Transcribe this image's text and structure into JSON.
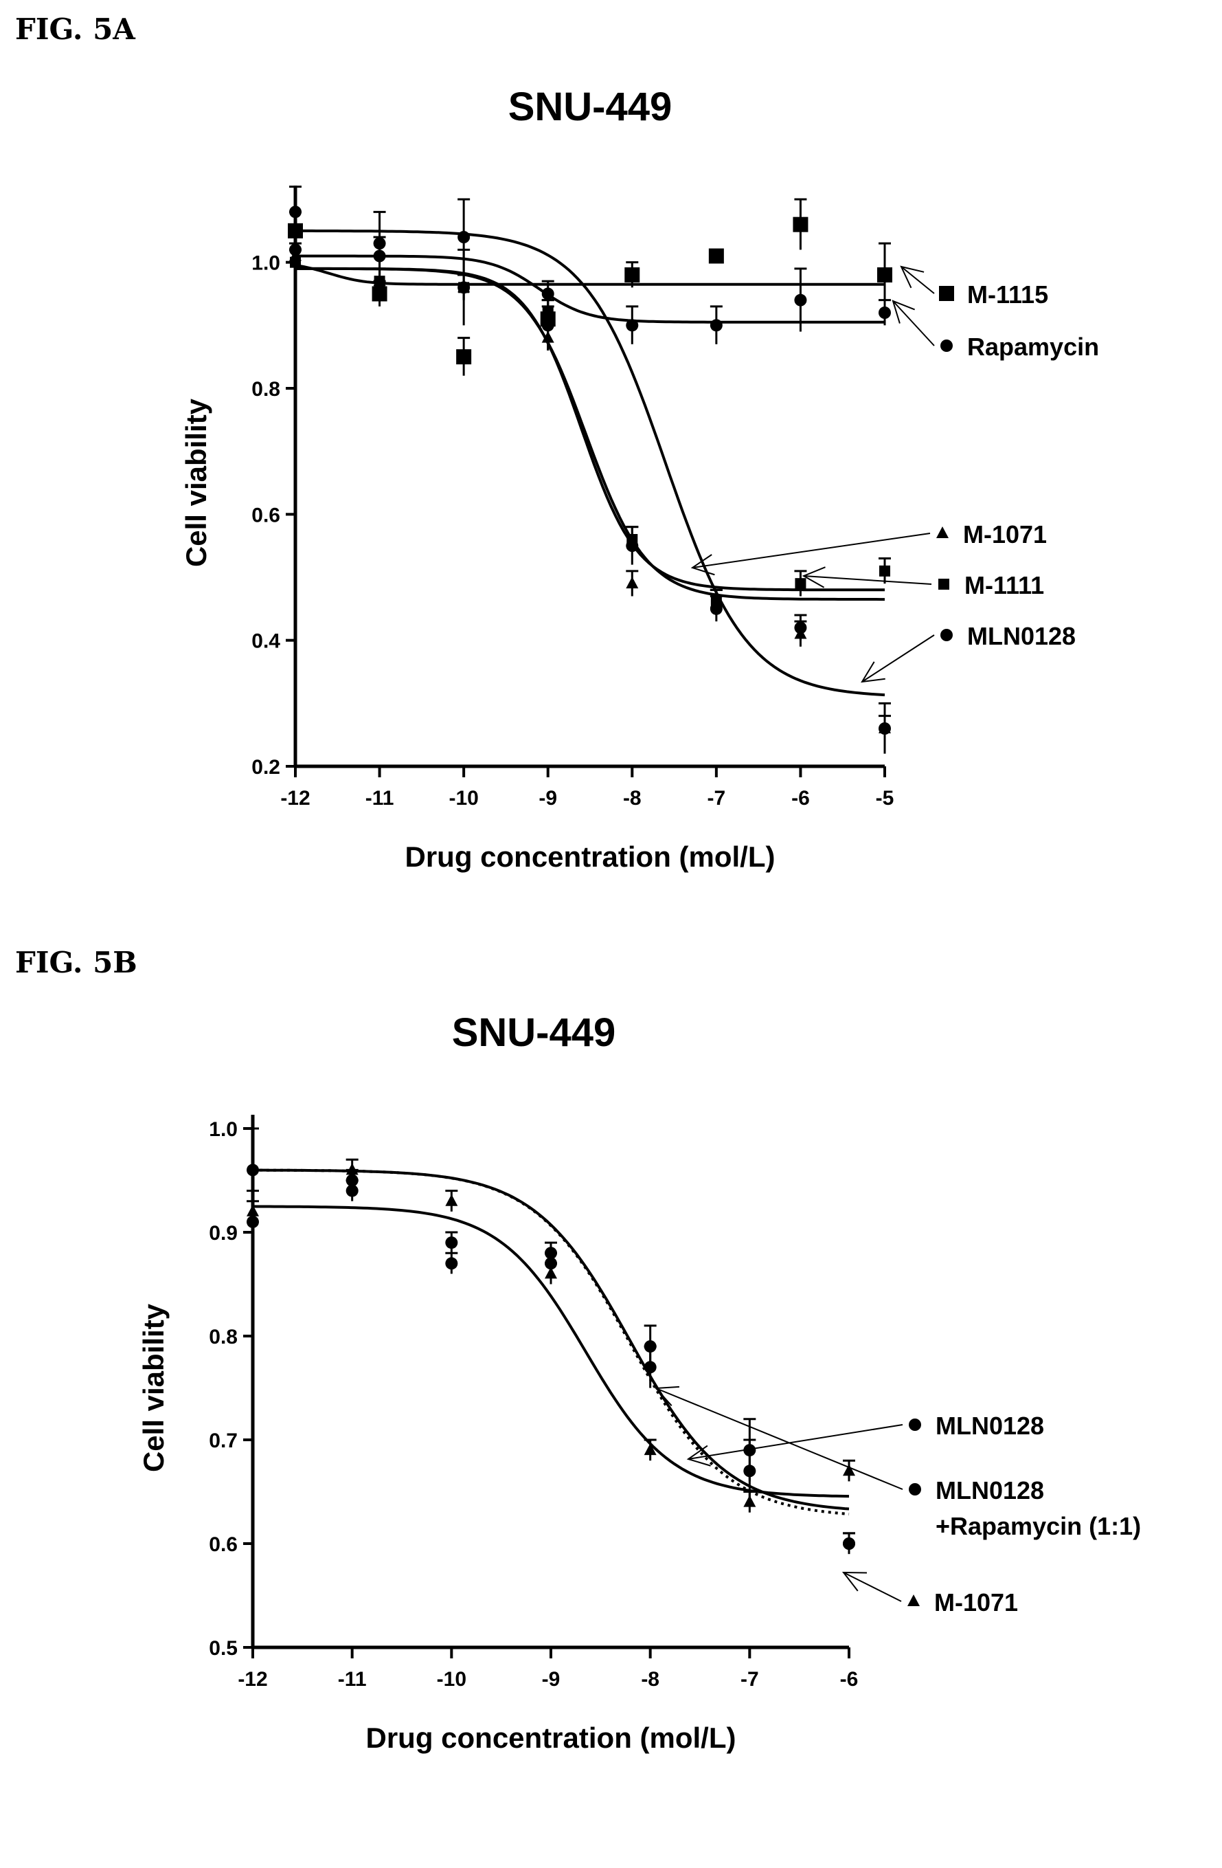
{
  "figures": [
    {
      "label": "FIG. 5A"
    },
    {
      "label": "FIG. 5B"
    }
  ],
  "chart_data": [
    {
      "type": "line",
      "title": "SNU-449",
      "xlabel": "Drug concentration (mol/L)",
      "ylabel": "Cell viability",
      "xlim": [
        -12,
        -5
      ],
      "ylim": [
        0.2,
        1.1
      ],
      "xticks": [
        -12,
        -11,
        -10,
        -9,
        -8,
        -7,
        -6,
        -5
      ],
      "yticks": [
        0.2,
        0.4,
        0.6,
        0.8,
        1.0
      ],
      "ytick_labels": [
        "0.2",
        "0.4",
        "0.6",
        "0.8",
        "1.0"
      ],
      "grid": false,
      "legend_position": "right",
      "series": [
        {
          "name": "M-1115",
          "marker": "square",
          "x": [
            -12,
            -11,
            -10,
            -9,
            -8,
            -7,
            -6,
            -5
          ],
          "y": [
            1.05,
            0.95,
            0.85,
            0.91,
            0.98,
            1.01,
            1.06,
            0.98
          ],
          "err": [
            0.03,
            0.02,
            0.03,
            0.02,
            0.02,
            0.01,
            0.04,
            0.05
          ],
          "fit": {
            "top": 1.0,
            "bottom": 0.965,
            "logEC50": -11.6,
            "hill": 2.0
          }
        },
        {
          "name": "Rapamycin",
          "marker": "circle",
          "x": [
            -12,
            -11,
            -10,
            -9,
            -8,
            -7,
            -6,
            -5
          ],
          "y": [
            1.08,
            1.03,
            0.96,
            0.9,
            0.9,
            0.9,
            0.94,
            0.92
          ],
          "err": [
            0.04,
            0.05,
            0.06,
            0.04,
            0.03,
            0.03,
            0.05,
            0.02
          ],
          "fit": {
            "top": 1.01,
            "bottom": 0.905,
            "logEC50": -9.1,
            "hill": 1.5
          }
        },
        {
          "name": "M-1071",
          "marker": "triangle",
          "x": [
            -12,
            -11,
            -10,
            -9,
            -8,
            -7,
            -6,
            -5
          ],
          "y": [
            1.01,
            0.97,
            0.96,
            0.88,
            0.49,
            0.46,
            0.41,
            0.26
          ],
          "err": [
            0.02,
            0.02,
            0.02,
            0.02,
            0.02,
            0.02,
            0.02,
            0.02
          ],
          "fit": {
            "top": 0.99,
            "bottom": 0.465,
            "logEC50": -8.55,
            "hill": 1.2
          }
        },
        {
          "name": "M-1111",
          "marker": "square-small",
          "x": [
            -12,
            -11,
            -10,
            -9,
            -8,
            -7,
            -6,
            -5
          ],
          "y": [
            1.0,
            0.97,
            0.96,
            0.92,
            0.56,
            0.46,
            0.49,
            0.51
          ],
          "err": [
            0.02,
            0.02,
            0.02,
            0.02,
            0.02,
            0.02,
            0.02,
            0.02
          ],
          "fit": {
            "top": 0.99,
            "bottom": 0.48,
            "logEC50": -8.6,
            "hill": 1.3
          }
        },
        {
          "name": "MLN0128",
          "marker": "circle",
          "x": [
            -12,
            -11,
            -10,
            -9,
            -8,
            -7,
            -6,
            -5
          ],
          "y": [
            1.02,
            1.01,
            1.04,
            0.95,
            0.55,
            0.45,
            0.42,
            0.26
          ],
          "err": [
            0.02,
            0.03,
            0.06,
            0.02,
            0.03,
            0.02,
            0.02,
            0.04
          ],
          "fit": {
            "top": 1.05,
            "bottom": 0.31,
            "logEC50": -7.6,
            "hill": 0.9
          }
        }
      ]
    },
    {
      "type": "line",
      "title": "SNU-449",
      "xlabel": "Drug concentration (mol/L)",
      "ylabel": "Cell viability",
      "xlim": [
        -12,
        -6
      ],
      "ylim": [
        0.5,
        1.0
      ],
      "xticks": [
        -12,
        -11,
        -10,
        -9,
        -8,
        -7,
        -6
      ],
      "yticks": [
        0.5,
        0.6,
        0.7,
        0.8,
        0.9,
        1.0
      ],
      "ytick_labels": [
        "0.5",
        "0.6",
        "0.7",
        "0.8",
        "0.9",
        "1.0"
      ],
      "grid": false,
      "legend_position": "right",
      "series": [
        {
          "name": "MLN0128",
          "marker": "circle",
          "line": "solid",
          "x": [
            -12,
            -11,
            -10,
            -9,
            -8,
            -7,
            -6
          ],
          "y": [
            0.96,
            0.94,
            0.87,
            0.87,
            0.79,
            0.69,
            0.6
          ],
          "err": [
            0.04,
            0.01,
            0.01,
            0.01,
            0.02,
            0.03,
            0.01
          ],
          "fit": {
            "top": 0.96,
            "bottom": 0.63,
            "logEC50": -8.2,
            "hill": 0.9
          }
        },
        {
          "name": "MLN0128\n+Rapamycin (1:1)",
          "marker": "circle",
          "line": "dotted",
          "x": [
            -12,
            -11,
            -10,
            -9,
            -8,
            -7,
            -6
          ],
          "y": [
            0.91,
            0.95,
            0.89,
            0.88,
            0.77,
            0.67,
            0.6
          ],
          "err": [
            0.03,
            0.01,
            0.01,
            0.01,
            0.02,
            0.03,
            0.01
          ],
          "fit": {
            "top": 0.96,
            "bottom": 0.625,
            "logEC50": -8.2,
            "hill": 0.9
          }
        },
        {
          "name": "M-1071",
          "marker": "triangle",
          "line": "solid",
          "x": [
            -12,
            -11,
            -10,
            -9,
            -8,
            -7,
            -6
          ],
          "y": [
            0.92,
            0.96,
            0.93,
            0.86,
            0.69,
            0.64,
            0.67
          ],
          "err": [
            0.01,
            0.01,
            0.01,
            0.01,
            0.01,
            0.01,
            0.01
          ],
          "fit": {
            "top": 0.925,
            "bottom": 0.645,
            "logEC50": -8.65,
            "hill": 1.0
          }
        }
      ]
    }
  ]
}
